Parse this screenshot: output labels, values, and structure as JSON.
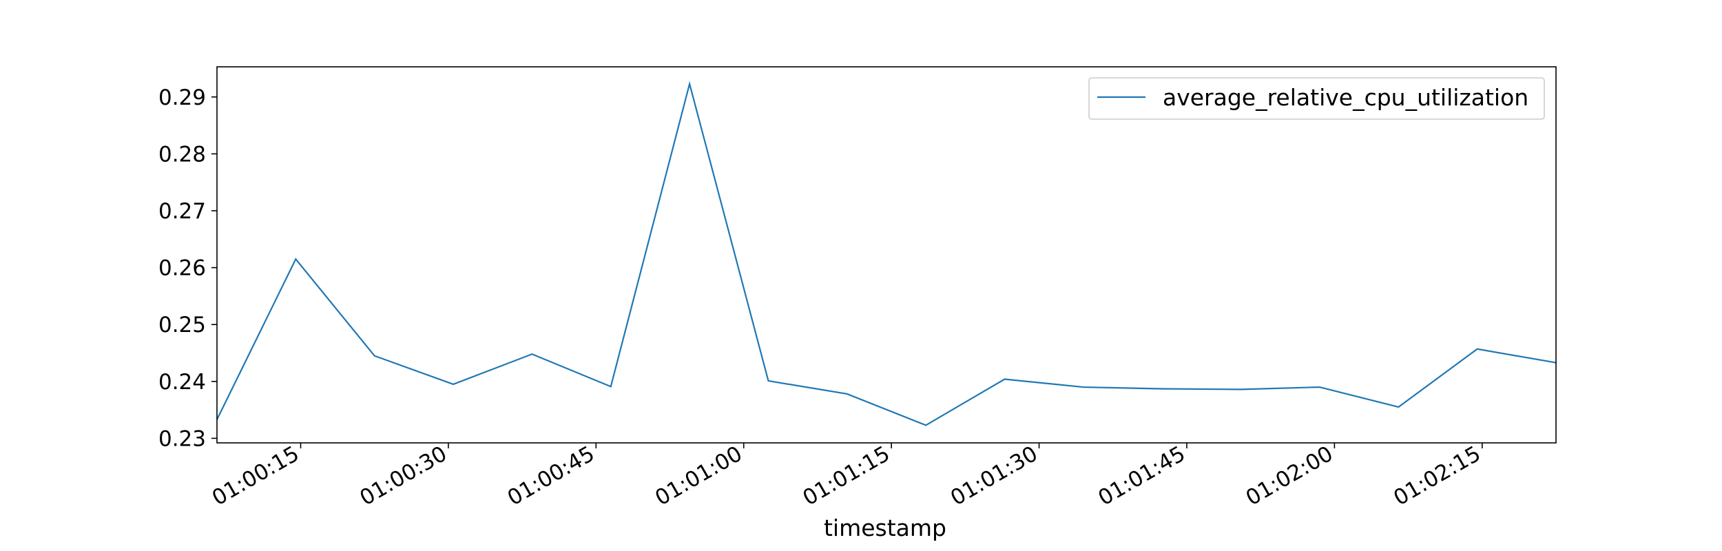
{
  "chart_data": {
    "type": "line",
    "xlabel": "timestamp",
    "x_tick_labels": [
      "01:00:15",
      "01:00:30",
      "01:00:45",
      "01:01:00",
      "01:01:15",
      "01:01:30",
      "01:01:45",
      "01:02:00",
      "01:02:15"
    ],
    "y_tick_labels": [
      "0.23",
      "0.24",
      "0.25",
      "0.26",
      "0.27",
      "0.28",
      "0.29"
    ],
    "xlim": [
      "01:00:06.5",
      "01:02:22.5"
    ],
    "ylim": [
      0.2292,
      0.2953
    ],
    "legend_position": "top-right",
    "grid": false,
    "series": [
      {
        "name": "average_relative_cpu_utilization",
        "color": "#1f77b4",
        "x": [
          "01:00:06.5",
          "01:00:14.5",
          "01:00:22.5",
          "01:00:30.5",
          "01:00:38.5",
          "01:00:46.5",
          "01:00:54.5",
          "01:01:02.5",
          "01:01:10.5",
          "01:01:18.5",
          "01:01:26.5",
          "01:01:34.5",
          "01:01:42.5",
          "01:01:50.5",
          "01:01:58.5",
          "01:02:06.5",
          "01:02:14.5",
          "01:02:22.5"
        ],
        "y": [
          0.2333,
          0.2615,
          0.2445,
          0.2395,
          0.2448,
          0.2391,
          0.2923,
          0.2401,
          0.2378,
          0.2323,
          0.2404,
          0.239,
          0.2387,
          0.2386,
          0.239,
          0.2355,
          0.2457,
          0.2433
        ]
      }
    ]
  }
}
